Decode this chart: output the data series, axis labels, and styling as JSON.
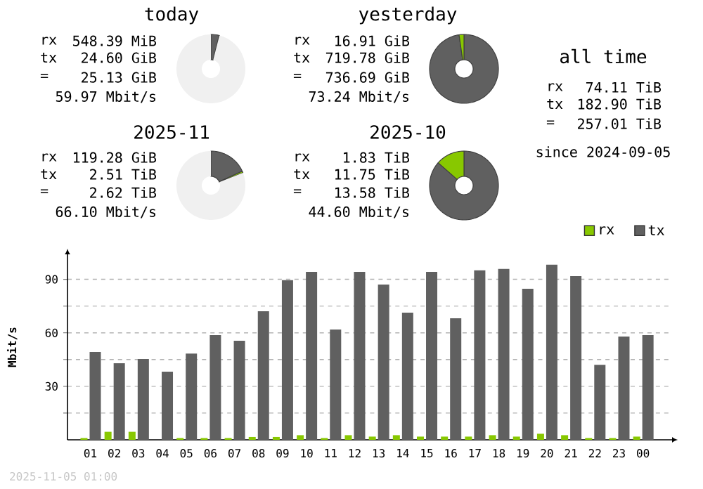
{
  "chart_data": [
    {
      "type": "donut",
      "title": "today",
      "categories": [
        null,
        null,
        null
      ],
      "values": [
        0.1,
        3.9,
        96
      ],
      "colors": [
        "#88c800",
        "#606060",
        "#f0f0f0"
      ],
      "annotations": [
        "rx",
        "548.39 MiB",
        "tx",
        "24.60 GiB",
        "=",
        "25.13 GiB",
        "59.97 Mbit/s"
      ]
    },
    {
      "type": "donut",
      "title": "yesterday",
      "categories": [
        null,
        null
      ],
      "values": [
        2.3,
        97.7
      ],
      "colors": [
        "#88c800",
        "#606060"
      ],
      "annotations": [
        "rx",
        "16.91 GiB",
        "tx",
        "719.78 GiB",
        "=",
        "736.69 GiB",
        "73.24 Mbit/s"
      ]
    },
    {
      "type": "other",
      "title": "all time",
      "annotations": [
        "rx",
        "74.11 TiB",
        "tx",
        "182.90 TiB",
        "=",
        "257.01 TiB",
        "since 2024-09-05"
      ]
    },
    {
      "type": "donut",
      "title": "2025-11",
      "categories": [
        null,
        null,
        null
      ],
      "values": [
        0.8,
        18.2,
        81
      ],
      "colors": [
        "#88c800",
        "#606060",
        "#f0f0f0"
      ],
      "annotations": [
        "rx",
        "119.28 GiB",
        "tx",
        "2.51 TiB",
        "=",
        "2.62 TiB",
        "66.10 Mbit/s"
      ]
    },
    {
      "type": "donut",
      "title": "2025-10",
      "categories": [
        null,
        null
      ],
      "values": [
        13.5,
        86.5
      ],
      "colors": [
        "#88c800",
        "#606060"
      ],
      "annotations": [
        "rx",
        "1.83 TiB",
        "tx",
        "11.75 TiB",
        "=",
        "13.58 TiB",
        "44.60 Mbit/s"
      ]
    },
    {
      "type": "bar",
      "categories": [
        "01",
        "02",
        "03",
        "04",
        "05",
        "06",
        "07",
        "08",
        "09",
        "10",
        "11",
        "12",
        "13",
        "14",
        "15",
        "16",
        "17",
        "18",
        "19",
        "20",
        "21",
        "22",
        "23",
        "00"
      ],
      "series": [
        {
          "name": "rx",
          "color": "#88c800",
          "values": [
            1,
            4.5,
            4.5,
            0,
            1,
            1,
            1,
            1.6,
            1.6,
            2.6,
            1,
            2.6,
            1.8,
            2.6,
            1.8,
            1.8,
            1.8,
            2.6,
            1.8,
            3.4,
            2.6,
            1,
            1,
            1.8
          ]
        },
        {
          "name": "tx",
          "color": "#606060",
          "values": [
            49.2,
            42.9,
            45.3,
            38.2,
            48.4,
            58.7,
            55.5,
            72.1,
            89.5,
            94.2,
            61.8,
            94.2,
            87.1,
            71.3,
            94.2,
            68.2,
            95,
            95.8,
            84.7,
            98.2,
            91.8,
            42.1,
            57.9,
            58.7
          ]
        }
      ],
      "ylabel": "Mbit/s",
      "ylim": [
        0,
        104
      ],
      "yticks": [
        {
          "value": 15,
          "label": null
        },
        30,
        {
          "value": 45,
          "label": null
        },
        60,
        {
          "value": 75,
          "label": null
        },
        90
      ],
      "grid": "y",
      "legend": "top right",
      "annotations": [
        "2025-11-05 01:00"
      ]
    }
  ]
}
